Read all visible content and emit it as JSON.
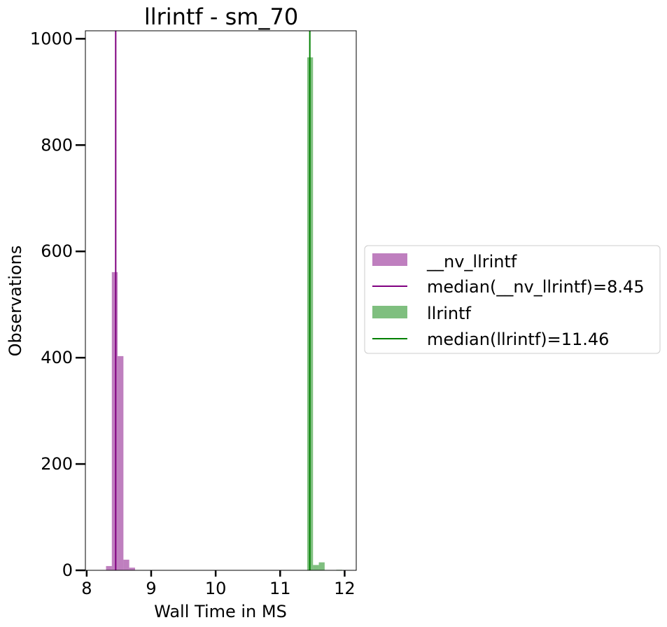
{
  "chart_data": {
    "type": "bar",
    "title": "llrintf - sm_70",
    "xlabel": "Wall Time in MS",
    "ylabel": "Observations",
    "xlim": [
      7.98,
      12.18
    ],
    "ylim": [
      0,
      1015
    ],
    "xticks": [
      8,
      9,
      10,
      11,
      12
    ],
    "yticks": [
      0,
      200,
      400,
      600,
      800,
      1000
    ],
    "legend_position": "right-outside",
    "grid": false,
    "bin_width": 0.09,
    "series": [
      {
        "name": "__nv_llrintf",
        "color": "#800080",
        "opacity": 0.5,
        "bins": [
          {
            "start": 8.3,
            "count": 8
          },
          {
            "start": 8.39,
            "count": 561
          },
          {
            "start": 8.48,
            "count": 403
          },
          {
            "start": 8.57,
            "count": 20
          },
          {
            "start": 8.66,
            "count": 5
          }
        ],
        "median_label": "median(__nv_llrintf)=8.45",
        "median": 8.45
      },
      {
        "name": "llrintf",
        "color": "#008000",
        "opacity": 0.5,
        "bins": [
          {
            "start": 11.42,
            "count": 965
          },
          {
            "start": 11.51,
            "count": 10
          },
          {
            "start": 11.6,
            "count": 15
          },
          {
            "start": 11.87,
            "count": 1
          }
        ],
        "median_label": "median(llrintf)=11.46",
        "median": 11.46
      }
    ]
  }
}
